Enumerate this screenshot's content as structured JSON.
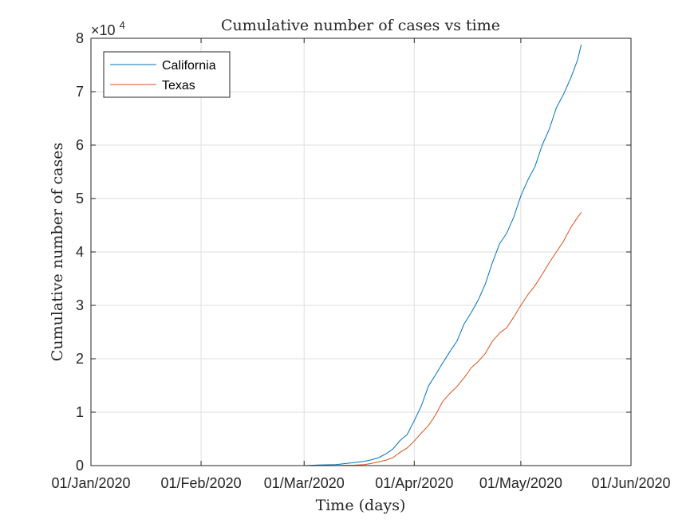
{
  "chart_data": {
    "type": "line",
    "title": "Cumulative number of cases vs time",
    "xlabel": "Time (days)",
    "ylabel": "Cumulative number of cases",
    "y_exponent_label": "×10",
    "y_exponent_power": "4",
    "xlim": [
      "2020-01-01",
      "2020-06-01"
    ],
    "ylim": [
      0,
      80000
    ],
    "x_ticks": [
      {
        "date": "2020-01-01",
        "label": "01/Jan/2020"
      },
      {
        "date": "2020-02-01",
        "label": "01/Feb/2020"
      },
      {
        "date": "2020-03-01",
        "label": "01/Mar/2020"
      },
      {
        "date": "2020-04-01",
        "label": "01/Apr/2020"
      },
      {
        "date": "2020-05-01",
        "label": "01/May/2020"
      },
      {
        "date": "2020-06-01",
        "label": "01/Jun/2020"
      }
    ],
    "y_ticks": [
      {
        "value": 0,
        "label": "0"
      },
      {
        "value": 10000,
        "label": "1"
      },
      {
        "value": 20000,
        "label": "2"
      },
      {
        "value": 30000,
        "label": "3"
      },
      {
        "value": 40000,
        "label": "4"
      },
      {
        "value": 50000,
        "label": "5"
      },
      {
        "value": 60000,
        "label": "6"
      },
      {
        "value": 70000,
        "label": "7"
      },
      {
        "value": 80000,
        "label": "8"
      }
    ],
    "grid": true,
    "legend_position": "top-left",
    "series": [
      {
        "name": "California",
        "color": "#0072bd",
        "points": [
          [
            "2020-01-25",
            0
          ],
          [
            "2020-02-10",
            0
          ],
          [
            "2020-02-20",
            0
          ],
          [
            "2020-03-01",
            0
          ],
          [
            "2020-03-05",
            100
          ],
          [
            "2020-03-10",
            200
          ],
          [
            "2020-03-13",
            400
          ],
          [
            "2020-03-15",
            550
          ],
          [
            "2020-03-18",
            800
          ],
          [
            "2020-03-20",
            1100
          ],
          [
            "2020-03-22",
            1500
          ],
          [
            "2020-03-24",
            2200
          ],
          [
            "2020-03-26",
            3100
          ],
          [
            "2020-03-28",
            4700
          ],
          [
            "2020-03-30",
            5800
          ],
          [
            "2020-04-01",
            8400
          ],
          [
            "2020-04-03",
            11200
          ],
          [
            "2020-04-05",
            14900
          ],
          [
            "2020-04-07",
            17000
          ],
          [
            "2020-04-09",
            19200
          ],
          [
            "2020-04-11",
            21300
          ],
          [
            "2020-04-13",
            23300
          ],
          [
            "2020-04-15",
            26500
          ],
          [
            "2020-04-17",
            28600
          ],
          [
            "2020-04-19",
            31000
          ],
          [
            "2020-04-21",
            34000
          ],
          [
            "2020-04-23",
            38000
          ],
          [
            "2020-04-25",
            41500
          ],
          [
            "2020-04-27",
            43500
          ],
          [
            "2020-04-29",
            46500
          ],
          [
            "2020-05-01",
            50500
          ],
          [
            "2020-05-03",
            53500
          ],
          [
            "2020-05-05",
            56000
          ],
          [
            "2020-05-07",
            60000
          ],
          [
            "2020-05-09",
            63000
          ],
          [
            "2020-05-11",
            67000
          ],
          [
            "2020-05-13",
            69500
          ],
          [
            "2020-05-15",
            72500
          ],
          [
            "2020-05-17",
            76000
          ],
          [
            "2020-05-18",
            78800
          ]
        ]
      },
      {
        "name": "Texas",
        "color": "#d95319",
        "points": [
          [
            "2020-01-25",
            0
          ],
          [
            "2020-02-10",
            0
          ],
          [
            "2020-02-20",
            0
          ],
          [
            "2020-03-01",
            0
          ],
          [
            "2020-03-10",
            20
          ],
          [
            "2020-03-15",
            80
          ],
          [
            "2020-03-18",
            200
          ],
          [
            "2020-03-20",
            400
          ],
          [
            "2020-03-22",
            700
          ],
          [
            "2020-03-24",
            1000
          ],
          [
            "2020-03-26",
            1500
          ],
          [
            "2020-03-28",
            2500
          ],
          [
            "2020-03-30",
            3300
          ],
          [
            "2020-04-01",
            4600
          ],
          [
            "2020-04-03",
            6100
          ],
          [
            "2020-04-05",
            7500
          ],
          [
            "2020-04-07",
            9500
          ],
          [
            "2020-04-09",
            12000
          ],
          [
            "2020-04-11",
            13500
          ],
          [
            "2020-04-13",
            14800
          ],
          [
            "2020-04-15",
            16400
          ],
          [
            "2020-04-17",
            18300
          ],
          [
            "2020-04-19",
            19500
          ],
          [
            "2020-04-21",
            21000
          ],
          [
            "2020-04-23",
            23300
          ],
          [
            "2020-04-25",
            24800
          ],
          [
            "2020-04-27",
            25800
          ],
          [
            "2020-04-29",
            27800
          ],
          [
            "2020-05-01",
            30000
          ],
          [
            "2020-05-03",
            32000
          ],
          [
            "2020-05-05",
            33700
          ],
          [
            "2020-05-07",
            35800
          ],
          [
            "2020-05-09",
            38000
          ],
          [
            "2020-05-11",
            40000
          ],
          [
            "2020-05-13",
            42000
          ],
          [
            "2020-05-15",
            44500
          ],
          [
            "2020-05-17",
            46500
          ],
          [
            "2020-05-18",
            47400
          ]
        ]
      }
    ]
  }
}
